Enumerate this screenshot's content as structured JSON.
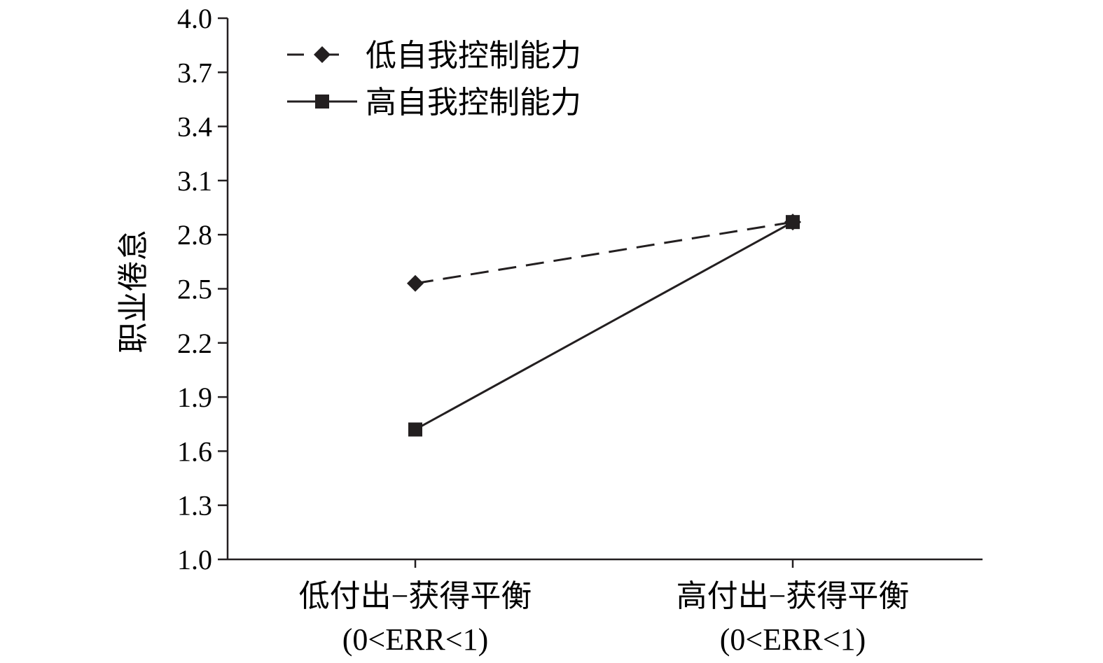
{
  "chart_data": {
    "type": "line",
    "title": "",
    "ylabel": "职业倦怠",
    "xlabel": "",
    "ylim": [
      1.0,
      4.0
    ],
    "yticks": [
      "1.0",
      "1.3",
      "1.6",
      "1.9",
      "2.2",
      "2.5",
      "2.8",
      "3.1",
      "3.4",
      "3.7",
      "4.0"
    ],
    "categories": [
      [
        "低付出−获得平衡",
        "(0<ERR<1)"
      ],
      [
        "高付出−获得平衡",
        "(0<ERR<1)"
      ]
    ],
    "series": [
      {
        "name": "低自我控制能力",
        "values": [
          2.53,
          2.87
        ],
        "line_style": "dashed",
        "marker": "diamond",
        "color": "#231f20"
      },
      {
        "name": "高自我控制能力",
        "values": [
          1.72,
          2.87
        ],
        "line_style": "solid",
        "marker": "square",
        "color": "#231f20"
      }
    ],
    "legend_position": "top-left",
    "grid": false
  }
}
